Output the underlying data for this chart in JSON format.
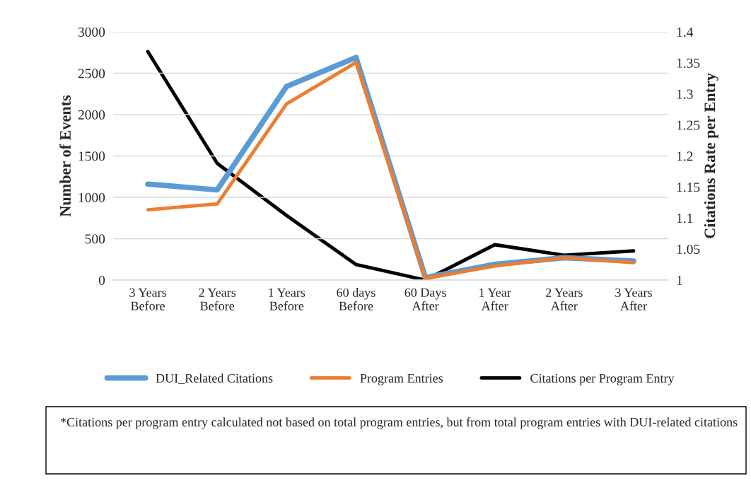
{
  "chart_data": {
    "type": "line",
    "xlabel": null,
    "ylabel": "Number of Events",
    "y2label": "Citations Rate per Entry",
    "categories": [
      "3 Years\nBefore",
      "2 Years\nBefore",
      "1 Years\nBefore",
      "60 days\nBefore",
      "60 Days\nAfter",
      "1 Year\nAfter",
      "2 Years\nAfter",
      "3 Years\nAfter"
    ],
    "series": [
      {
        "name": "DUI_Related Citations",
        "color": "#5b9bd5",
        "values": [
          1160,
          1090,
          2340,
          2690,
          30,
          190,
          270,
          230
        ]
      },
      {
        "name": "Program Entries",
        "color": "#ed7d31",
        "values": [
          850,
          920,
          2130,
          2630,
          20,
          170,
          270,
          210
        ]
      },
      {
        "name": "Citations per Program Entry",
        "color": "#000000",
        "axis": "y2",
        "values": [
          1.368,
          1.188,
          1.104,
          1.025,
          1.0,
          1.057,
          1.04,
          1.047
        ]
      }
    ],
    "ylim": [
      0,
      3000
    ],
    "yticks": [
      0,
      500,
      1000,
      1500,
      2000,
      2500,
      3000
    ],
    "y2lim": [
      1,
      1.4
    ],
    "y2ticks": [
      {
        "value": 1,
        "label": "1"
      },
      {
        "value": 1.05,
        "label": "1.05"
      },
      {
        "value": 1.1,
        "label": "1.1"
      },
      {
        "value": 1.15,
        "label": "1.15"
      },
      {
        "value": 1.2,
        "label": "1.2"
      },
      {
        "value": 1.25,
        "label": "1.25"
      },
      {
        "value": 1.3,
        "label": "1.3"
      },
      {
        "value": 1.35,
        "label": "1.35"
      },
      {
        "value": 1.4,
        "label": "1.4"
      }
    ],
    "grid": "y",
    "legend": "bottom",
    "annotations": [
      "*Citations per program entry calculated not based on total program entries, but from total program entries with DUI-related citations"
    ]
  }
}
